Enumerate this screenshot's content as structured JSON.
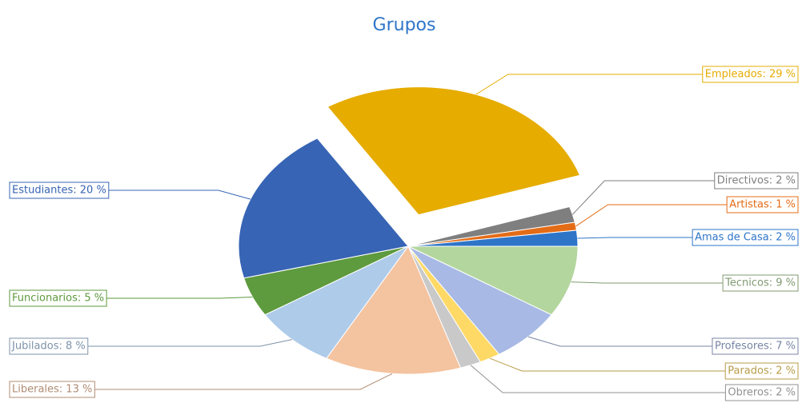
{
  "chart_data": {
    "type": "pie",
    "title": "Grupos",
    "value_labels": [
      "Empleados: 29 %",
      "Directivos: 2 %",
      "Artistas: 1 %",
      "Amas de Casa: 2 %",
      "Tecnicos: 9 %",
      "Profesores: 7 %",
      "Parados: 2 %",
      "Obreros: 2 %",
      "Liberales: 13 %",
      "Jubilados: 8 %",
      "Funcionarios: 5 %",
      "Estudiantes: 20 %"
    ],
    "values": [
      29,
      2,
      1,
      2,
      9,
      7,
      2,
      2,
      13,
      8,
      5,
      20
    ],
    "colors": [
      "#e6ac00",
      "#7f7f7f",
      "#e46c17",
      "#2e75c8",
      "#b3d69e",
      "#a7b9e4",
      "#ffd966",
      "#c9c9c9",
      "#f4c3a0",
      "#aecbe9",
      "#5e9a3e",
      "#3764b4"
    ]
  }
}
